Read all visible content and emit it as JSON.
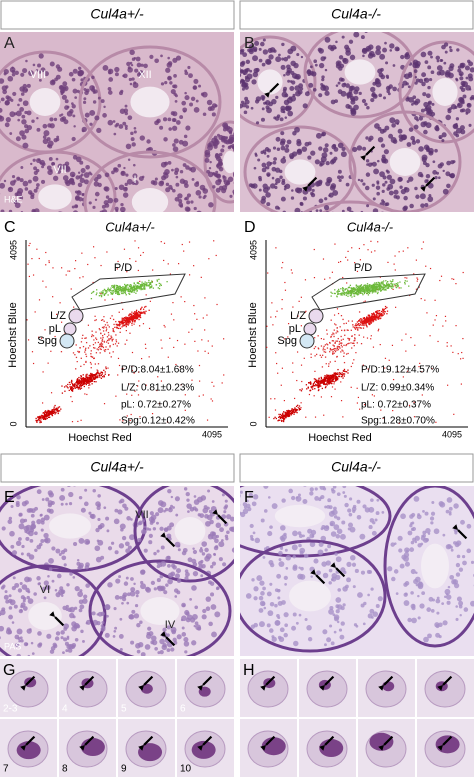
{
  "header_top": [
    "Cul4a+/-",
    "Cul4a-/-"
  ],
  "header_mid": [
    "Cul4a+/-",
    "Cul4a-/-"
  ],
  "panels": {
    "A": {
      "letter": "A",
      "labels": [
        "VIII",
        "XII",
        "VII",
        "I"
      ],
      "stain": "H&E"
    },
    "B": {
      "letter": "B"
    },
    "C": {
      "letter": "C",
      "title": "Cul4a+/-",
      "y_axis": "Hoechst Blue",
      "x_axis": "Hoechst Red",
      "y_max": "4095",
      "origin": "0",
      "x_max": "4095",
      "gates": [
        "P/D",
        "L/Z",
        "pL",
        "Spg"
      ],
      "stats": [
        "P/D:8.04±1.68%",
        "L/Z: 0.81±0.23%",
        "pL:  0.72±0.27%",
        "Spg:0.12±0.42%"
      ]
    },
    "D": {
      "letter": "D",
      "title": "Cul4a-/-",
      "y_axis": "Hoechst Blue",
      "x_axis": "Hoechst Red",
      "y_max": "4095",
      "origin": "0",
      "x_max": "4095",
      "gates": [
        "P/D",
        "L/Z",
        "pL",
        "Spg"
      ],
      "stats": [
        "P/D:19.12±4.57%",
        "L/Z: 0.99±0.34%",
        "pL:  0.72±0.37%",
        "Spg:1.28±0.70%"
      ]
    },
    "E": {
      "letter": "E",
      "labels": [
        "VII",
        "VI",
        "IV"
      ],
      "stain": "PAS"
    },
    "F": {
      "letter": "F"
    },
    "G": {
      "letter": "G",
      "cells": [
        "2-3",
        "4",
        "5",
        "6",
        "7",
        "8",
        "9",
        "10"
      ]
    },
    "H": {
      "letter": "H"
    }
  }
}
